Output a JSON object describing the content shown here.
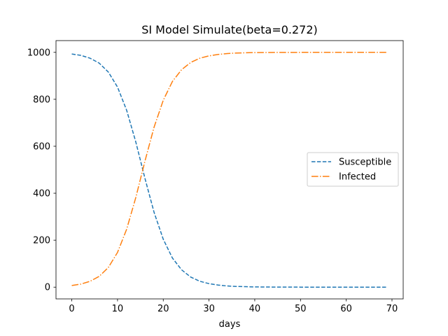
{
  "chart_data": {
    "type": "line",
    "title": "SI Model Simulate(beta=0.272)",
    "xlabel": "days",
    "ylabel": "",
    "xlim": [
      -3.45,
      72.45
    ],
    "ylim": [
      -50,
      1050
    ],
    "x_ticks": [
      "0",
      "10",
      "20",
      "30",
      "40",
      "50",
      "60",
      "70"
    ],
    "y_ticks": [
      "0",
      "200",
      "400",
      "600",
      "800",
      "1000"
    ],
    "x_tick_values": [
      0,
      10,
      20,
      30,
      40,
      50,
      60,
      70
    ],
    "y_tick_values": [
      0,
      200,
      400,
      600,
      800,
      1000
    ],
    "grid": false,
    "legend_position": "center-right",
    "x": [
      0,
      2,
      4,
      6,
      8,
      10,
      12,
      14,
      16,
      18,
      20,
      22,
      24,
      26,
      28,
      30,
      32,
      34,
      36,
      38,
      40,
      45,
      50,
      55,
      60,
      65,
      69
    ],
    "series": [
      {
        "name": "Susceptible",
        "color": "#1f77b4",
        "dash": "dashed",
        "values": [
          993,
          987,
          975,
          954,
          916,
          852,
          753,
          618,
          463,
          318,
          204,
          124,
          74,
          43,
          25,
          15,
          9,
          5,
          3,
          2,
          1,
          0.3,
          0.1,
          0,
          0,
          0,
          0
        ]
      },
      {
        "name": "Infected",
        "color": "#ff7f0e",
        "dash": "dashdot",
        "values": [
          7,
          13,
          25,
          46,
          84,
          148,
          247,
          382,
          537,
          682,
          796,
          876,
          926,
          957,
          975,
          985,
          991,
          995,
          997,
          998,
          999,
          999.7,
          999.9,
          1000,
          1000,
          1000,
          1000
        ]
      }
    ]
  }
}
